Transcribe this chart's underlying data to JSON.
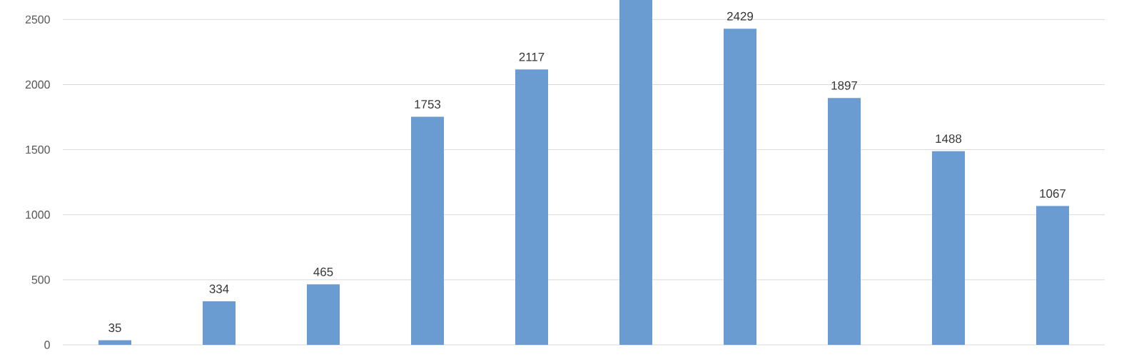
{
  "chart_data": {
    "type": "bar",
    "categories": [
      null,
      null,
      null,
      null,
      null,
      null,
      null,
      null,
      null,
      null
    ],
    "values": [
      35,
      334,
      465,
      1753,
      2117,
      2650,
      2429,
      1897,
      1488,
      1067
    ],
    "value_labels": [
      "35",
      "334",
      "465",
      "1753",
      "2117",
      null,
      "2429",
      "1897",
      "1488",
      "1067"
    ],
    "color": "#6a9bd1",
    "ylim": [
      0,
      2650
    ],
    "yticks": [
      0,
      500,
      1000,
      1500,
      2000,
      2500
    ],
    "grid": "y"
  }
}
